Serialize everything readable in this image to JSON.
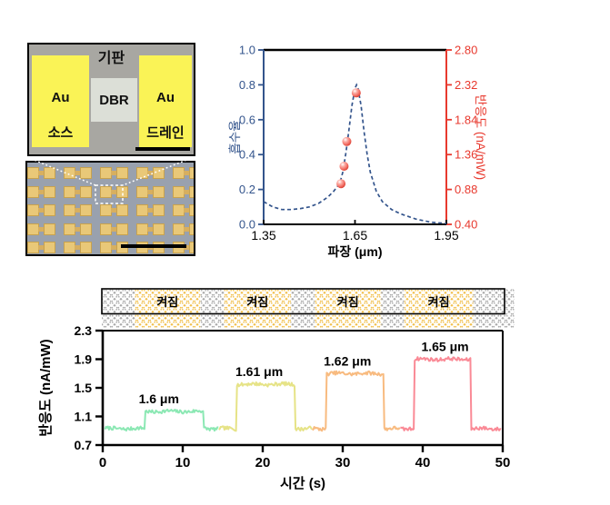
{
  "device_panel": {
    "substrate_label": "기판",
    "dbr_label": "DBR",
    "source_pad": {
      "metal": "Au",
      "role": "소스"
    },
    "drain_pad": {
      "metal": "Au",
      "role": "드레인"
    },
    "array": {
      "rows": 5,
      "pairs_per_row": 5
    }
  },
  "colors": {
    "axis_blue": "#33548c",
    "axis_red": "#e8392e",
    "point_fill": "#f4766d",
    "au_yellow": "#faf356",
    "substrate_gray": "#a8a7a2",
    "dbr_gray": "#dcdfd7",
    "array_bg": "#99a1ae",
    "gold_square": "#e9c878",
    "bar_hatch_gray": "#a9a9a9",
    "bar_hatch_yellow": "#f1bf4a"
  },
  "chart_data": [
    {
      "type": "line",
      "name": "absorption-responsivity-spectrum",
      "xlabel": "파장 (μm)",
      "xlim": [
        1.35,
        1.95
      ],
      "xticks": {
        "values": [
          1.35,
          1.65,
          1.95
        ],
        "labels": [
          "1.35",
          "1.65",
          "1.95"
        ]
      },
      "left_axis": {
        "label": "흡수율",
        "ylim": [
          0.0,
          1.0
        ],
        "ticks": {
          "values": [
            0.0,
            0.2,
            0.4,
            0.6,
            0.8,
            1.0
          ],
          "labels": [
            "0.0",
            "0.2",
            "0.4",
            "0.6",
            "0.8",
            "1.0"
          ]
        }
      },
      "right_axis": {
        "label": "반응도 (nA/mW)",
        "ylim": [
          0.4,
          2.8
        ],
        "ticks": {
          "values": [
            0.4,
            0.88,
            1.36,
            1.84,
            2.32,
            2.8
          ],
          "labels": [
            "0.40",
            "0.88",
            "1.36",
            "1.84",
            "2.32",
            "2.80"
          ]
        }
      },
      "series": [
        {
          "name": "absorption",
          "axis": "left",
          "style": "dashed",
          "x": [
            1.35,
            1.38,
            1.41,
            1.44,
            1.47,
            1.5,
            1.53,
            1.56,
            1.58,
            1.6,
            1.61,
            1.62,
            1.63,
            1.64,
            1.65,
            1.655,
            1.66,
            1.67,
            1.68,
            1.69,
            1.7,
            1.72,
            1.74,
            1.77,
            1.8,
            1.85,
            1.9,
            1.95
          ],
          "y": [
            0.13,
            0.1,
            0.085,
            0.085,
            0.09,
            0.1,
            0.12,
            0.155,
            0.19,
            0.235,
            0.3,
            0.41,
            0.54,
            0.68,
            0.78,
            0.8,
            0.78,
            0.68,
            0.53,
            0.4,
            0.3,
            0.19,
            0.13,
            0.085,
            0.06,
            0.03,
            0.012,
            0.005
          ]
        },
        {
          "name": "responsivity",
          "axis": "right",
          "style": "scatter",
          "x": [
            1.604,
            1.614,
            1.623,
            1.654
          ],
          "y": [
            0.96,
            1.2,
            1.54,
            2.21
          ]
        }
      ]
    },
    {
      "type": "line",
      "name": "time-trace",
      "xlabel": "시간 (s)",
      "ylabel": "반응도 (nA/mW)",
      "xlim": [
        0,
        50
      ],
      "xticks": {
        "values": [
          0,
          10,
          20,
          30,
          40,
          50
        ],
        "labels": [
          "0",
          "10",
          "20",
          "30",
          "40",
          "50"
        ]
      },
      "ylim": [
        0.7,
        2.3
      ],
      "yticks": {
        "values": [
          0.7,
          1.1,
          1.5,
          1.9,
          2.3
        ],
        "labels": [
          "0.7",
          "1.1",
          "1.5",
          "1.9",
          "2.3"
        ]
      },
      "baseline": 0.93,
      "pulses": [
        {
          "wavelength": "1.6 μm",
          "color": "#8ce8b4",
          "segment": [
            0.3,
            14.5
          ],
          "on": [
            5.3,
            12.6
          ],
          "level": 1.17
        },
        {
          "wavelength": "1.61 μm",
          "color": "#e6e387",
          "segment": [
            14.5,
            26.2
          ],
          "on": [
            16.7,
            24.0
          ],
          "level": 1.55
        },
        {
          "wavelength": "1.62 μm",
          "color": "#f8bb80",
          "segment": [
            26.2,
            37.2
          ],
          "on": [
            27.9,
            35.1
          ],
          "level": 1.7
        },
        {
          "wavelength": "1.65 μm",
          "color": "#fa8a96",
          "segment": [
            37.2,
            49.8
          ],
          "on": [
            38.9,
            46.0
          ],
          "level": 1.9
        }
      ],
      "illumination_bar": {
        "on_label": "켜짐",
        "on_periods_s": [
          [
            4.0,
            12.2
          ],
          [
            15.2,
            23.5
          ],
          [
            26.5,
            34.8
          ],
          [
            37.7,
            46.3
          ]
        ]
      }
    }
  ]
}
